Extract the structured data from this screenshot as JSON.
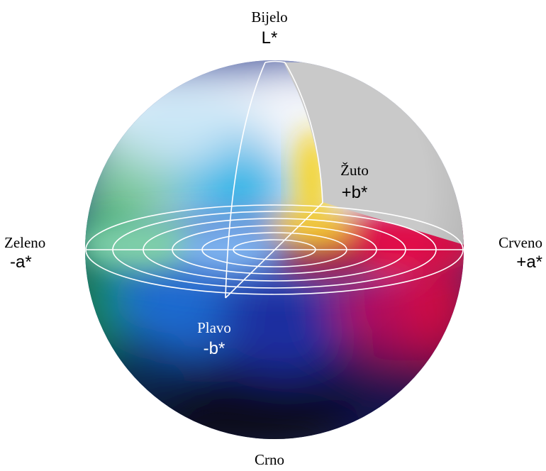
{
  "labels": {
    "top": {
      "name": "Bijelo",
      "axis": "L*"
    },
    "bottom": {
      "name": "Crno"
    },
    "left": {
      "name": "Zeleno",
      "axis": "-a*"
    },
    "right": {
      "name": "Crveno",
      "axis": "+a*"
    },
    "yellow": {
      "name": "Žuto",
      "axis": "+b*"
    },
    "blue": {
      "name": "Plavo",
      "axis": "-b*"
    }
  },
  "colors": {
    "cutaway": "#c9c9c9",
    "lines": "#ffffff",
    "yellow": "#f7d21a",
    "red": "#e0104a",
    "green": "#1a9a4a",
    "cyan": "#16b4e6",
    "blue": "#1b4fc4",
    "black": "#0b0a1c"
  }
}
